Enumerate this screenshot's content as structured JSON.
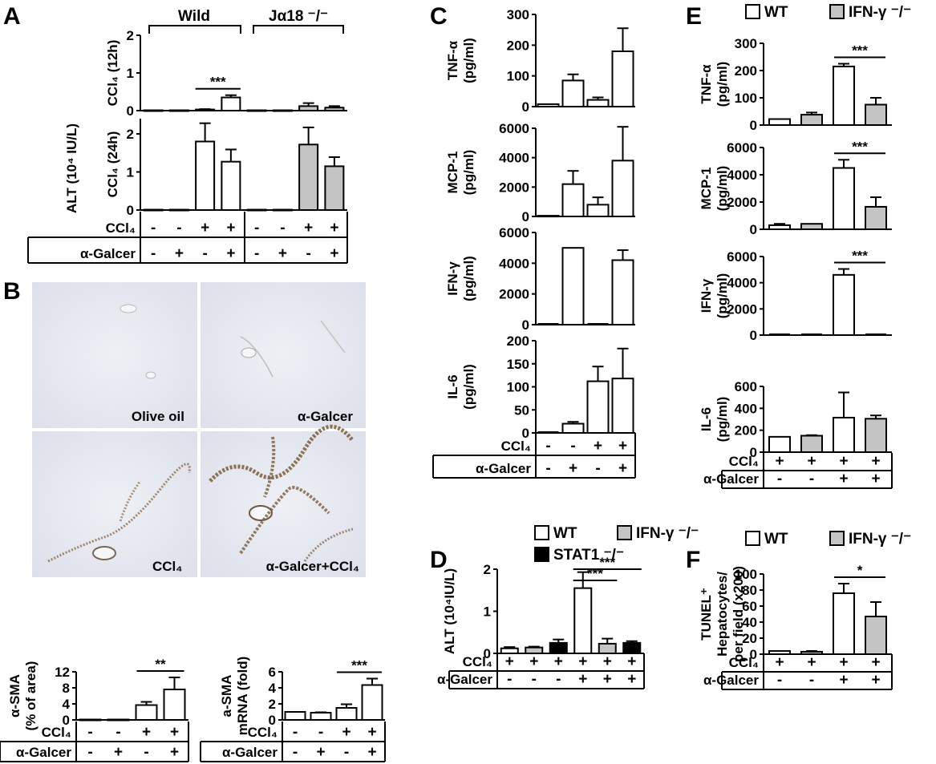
{
  "colors": {
    "WT": "#ffffff",
    "IFN": "#c4c4c4",
    "STAT1": "#000000",
    "axis": "#000000"
  },
  "panels": {
    "A": {
      "label": "A",
      "ylabel": "ALT (10⁴ IU/L)",
      "group_wild": "Wild",
      "group_ko": "Jα18 ⁻/⁻",
      "sub12_label": "CCl₄ (12h)",
      "sub24_label": "CCl₄ (24h)"
    },
    "B": {
      "label": "B",
      "micrograph_labels": [
        "Olive oil",
        "α-Galcer",
        "CCl₄",
        "α-Galcer+CCl₄"
      ]
    },
    "C": {
      "label": "C"
    },
    "D": {
      "label": "D",
      "legend": [
        "WT",
        "IFN-γ ⁻/⁻",
        "STAT1 ⁻/⁻"
      ]
    },
    "E": {
      "label": "E",
      "legend": [
        "WT",
        "IFN-γ ⁻/⁻"
      ]
    },
    "F": {
      "label": "F",
      "legend": [
        "WT",
        "IFN-γ ⁻/⁻"
      ]
    }
  },
  "chart_data": [
    {
      "id": "A-12h",
      "type": "bar",
      "panel": "A",
      "ylabel": "CCl₄ (12h)",
      "ylim": [
        0,
        2
      ],
      "yticks": [
        "0",
        "1",
        "2"
      ],
      "groups": [
        "Wild",
        "Jα18 ⁻/⁻"
      ],
      "values": [
        0.01,
        0.01,
        0.03,
        0.35,
        0.01,
        0.01,
        0.12,
        0.08
      ],
      "errors": [
        0,
        0,
        0.01,
        0.06,
        0,
        0,
        0.08,
        0.04
      ],
      "fill": [
        "WT",
        "WT",
        "WT",
        "WT",
        "IFN",
        "IFN",
        "IFN",
        "IFN"
      ],
      "annotations": [
        {
          "text": "***",
          "from": 2,
          "to": 3
        }
      ]
    },
    {
      "id": "A-24h",
      "type": "bar",
      "panel": "A",
      "ylabel": "CCl₄ (24h)",
      "ylim": [
        0,
        2.4
      ],
      "yticks": [
        "0",
        "1",
        "2"
      ],
      "values": [
        0.01,
        0.01,
        1.8,
        1.27,
        0.01,
        0.01,
        1.72,
        1.15
      ],
      "errors": [
        0,
        0,
        0.48,
        0.32,
        0,
        0,
        0.45,
        0.24
      ],
      "fill": [
        "WT",
        "WT",
        "WT",
        "WT",
        "IFN",
        "IFN",
        "IFN",
        "IFN"
      ],
      "treatments": {
        "CCl₄": [
          "-",
          "-",
          "+",
          "+",
          "-",
          "-",
          "+",
          "+"
        ],
        "α-Galcer": [
          "-",
          "+",
          "-",
          "+",
          "-",
          "+",
          "-",
          "+"
        ]
      }
    },
    {
      "id": "B-SMA-area",
      "type": "bar",
      "panel": "B",
      "ylabel": "α-SMA\n(% of area)",
      "ylim": [
        0,
        12
      ],
      "yticks": [
        "0",
        "4",
        "8",
        "12"
      ],
      "values": [
        0.1,
        0.1,
        3.7,
        7.6
      ],
      "errors": [
        0,
        0,
        0.8,
        3.0
      ],
      "fill": [
        "WT",
        "WT",
        "WT",
        "WT"
      ],
      "annotations": [
        {
          "text": "**",
          "from": 2,
          "to": 3
        }
      ],
      "treatments": {
        "CCl₄": [
          "-",
          "-",
          "+",
          "+"
        ],
        "α-Galcer": [
          "-",
          "+",
          "-",
          "+"
        ]
      }
    },
    {
      "id": "B-SMA-mRNA",
      "type": "bar",
      "panel": "B",
      "ylabel": "a-SMA\nmRNA (fold)",
      "ylim": [
        0,
        6
      ],
      "yticks": [
        "0",
        "2",
        "4",
        "6"
      ],
      "values": [
        1.0,
        0.9,
        1.5,
        4.35
      ],
      "errors": [
        0,
        0.05,
        0.45,
        0.8
      ],
      "fill": [
        "WT",
        "WT",
        "WT",
        "WT"
      ],
      "annotations": [
        {
          "text": "***",
          "from": 2,
          "to": 3
        }
      ],
      "treatments": {
        "CCl₄": [
          "-",
          "-",
          "+",
          "+"
        ],
        "α-Galcer": [
          "-",
          "+",
          "-",
          "+"
        ]
      }
    },
    {
      "id": "C-TNF",
      "type": "bar",
      "panel": "C",
      "ylabel": "TNF-α\n(pg/ml)",
      "ylim": [
        0,
        300
      ],
      "yticks": [
        "0",
        "100",
        "200",
        "300"
      ],
      "values": [
        8,
        85,
        22,
        180
      ],
      "errors": [
        0,
        20,
        8,
        75
      ],
      "fill": [
        "WT",
        "WT",
        "WT",
        "WT"
      ]
    },
    {
      "id": "C-MCP",
      "type": "bar",
      "panel": "C",
      "ylabel": "MCP-1\n(pg/ml)",
      "ylim": [
        0,
        6000
      ],
      "yticks": [
        "0",
        "2000",
        "4000",
        "6000"
      ],
      "values": [
        50,
        2200,
        800,
        3800
      ],
      "errors": [
        0,
        900,
        500,
        2300
      ],
      "fill": [
        "WT",
        "WT",
        "WT",
        "WT"
      ]
    },
    {
      "id": "C-IFN",
      "type": "bar",
      "panel": "C",
      "ylabel": "IFN-γ\n(pg/ml)",
      "ylim": [
        0,
        6000
      ],
      "yticks": [
        "0",
        "2000",
        "4000",
        "6000"
      ],
      "values": [
        0,
        5000,
        0,
        4200
      ],
      "errors": [
        0,
        0,
        0,
        650
      ],
      "fill": [
        "WT",
        "WT",
        "WT",
        "WT"
      ]
    },
    {
      "id": "C-IL6",
      "type": "bar",
      "panel": "C",
      "ylabel": "IL-6\n(pg/ml)",
      "ylim": [
        0,
        200
      ],
      "yticks": [
        "0",
        "50",
        "100",
        "150",
        "200"
      ],
      "values": [
        0,
        20,
        112,
        118
      ],
      "errors": [
        0,
        4,
        32,
        65
      ],
      "fill": [
        "WT",
        "WT",
        "WT",
        "WT"
      ],
      "treatments": {
        "CCl₄": [
          "-",
          "-",
          "+",
          "+"
        ],
        "α-Galcer": [
          "-",
          "+",
          "-",
          "+"
        ]
      }
    },
    {
      "id": "D-ALT",
      "type": "bar",
      "panel": "D",
      "ylabel": "ALT (10⁴IU/L)",
      "ylim": [
        0,
        2
      ],
      "yticks": [
        "0",
        "1",
        "2"
      ],
      "values": [
        0.12,
        0.14,
        0.25,
        1.55,
        0.23,
        0.25
      ],
      "errors": [
        0.03,
        0.02,
        0.08,
        0.38,
        0.12,
        0.04
      ],
      "fill": [
        "WT",
        "IFN",
        "STAT1",
        "WT",
        "IFN",
        "STAT1"
      ],
      "annotations": [
        {
          "text": "***",
          "from": 3,
          "to": 4,
          "level": 0
        },
        {
          "text": "***",
          "from": 3,
          "to": 5,
          "level": 1
        }
      ],
      "treatments": {
        "CCl₄": [
          "+",
          "+",
          "+",
          "+",
          "+",
          "+"
        ],
        "α-Galcer": [
          "-",
          "-",
          "-",
          "+",
          "+",
          "+"
        ]
      }
    },
    {
      "id": "E-TNF",
      "type": "bar",
      "panel": "E",
      "ylabel": "TNF-α\n(pg/ml)",
      "ylim": [
        0,
        300
      ],
      "yticks": [
        "0",
        "100",
        "200",
        "300"
      ],
      "values": [
        22,
        38,
        215,
        75
      ],
      "errors": [
        0,
        8,
        10,
        25
      ],
      "fill": [
        "WT",
        "IFN",
        "WT",
        "IFN"
      ],
      "annotations": [
        {
          "text": "***",
          "from": 2,
          "to": 3
        }
      ]
    },
    {
      "id": "E-MCP",
      "type": "bar",
      "panel": "E",
      "ylabel": "MCP-1\n(pg/ml)",
      "ylim": [
        0,
        6000
      ],
      "yticks": [
        "0",
        "2000",
        "4000",
        "6000"
      ],
      "values": [
        300,
        400,
        4500,
        1650
      ],
      "errors": [
        100,
        0,
        600,
        700
      ],
      "fill": [
        "WT",
        "IFN",
        "WT",
        "IFN"
      ],
      "annotations": [
        {
          "text": "***",
          "from": 2,
          "to": 3
        }
      ]
    },
    {
      "id": "E-IFN",
      "type": "bar",
      "panel": "E",
      "ylabel": "IFN-γ\n(pg/ml)",
      "ylim": [
        0,
        6000
      ],
      "yticks": [
        "0",
        "2000",
        "4000",
        "6000"
      ],
      "values": [
        0,
        0,
        4600,
        0
      ],
      "errors": [
        0,
        0,
        450,
        0
      ],
      "fill": [
        "WT",
        "IFN",
        "WT",
        "IFN"
      ],
      "annotations": [
        {
          "text": "***",
          "from": 2,
          "to": 3
        }
      ]
    },
    {
      "id": "E-IL6",
      "type": "bar",
      "panel": "E",
      "ylabel": "IL-6\n(pg/ml)",
      "ylim": [
        0,
        600
      ],
      "yticks": [
        "0",
        "200",
        "400",
        "600"
      ],
      "values": [
        140,
        150,
        315,
        305
      ],
      "errors": [
        0,
        5,
        230,
        30
      ],
      "fill": [
        "WT",
        "IFN",
        "WT",
        "IFN"
      ],
      "treatments": {
        "CCl₄": [
          "+",
          "+",
          "+",
          "+"
        ],
        "α-Galcer": [
          "-",
          "-",
          "+",
          "+"
        ]
      }
    },
    {
      "id": "F-TUNEL",
      "type": "bar",
      "panel": "F",
      "ylabel": "TUNEL⁺\nHepatocytes/\nper field (x200)",
      "ylim": [
        0,
        100
      ],
      "yticks": [
        "0",
        "20",
        "40",
        "60",
        "80",
        "100"
      ],
      "values": [
        4,
        3,
        76,
        47
      ],
      "errors": [
        0,
        1,
        12,
        18
      ],
      "fill": [
        "WT",
        "IFN",
        "WT",
        "IFN"
      ],
      "annotations": [
        {
          "text": "*",
          "from": 2,
          "to": 3
        }
      ],
      "treatments": {
        "CCl₄": [
          "+",
          "+",
          "+",
          "+"
        ],
        "α-Galcer": [
          "-",
          "-",
          "+",
          "+"
        ]
      }
    }
  ]
}
